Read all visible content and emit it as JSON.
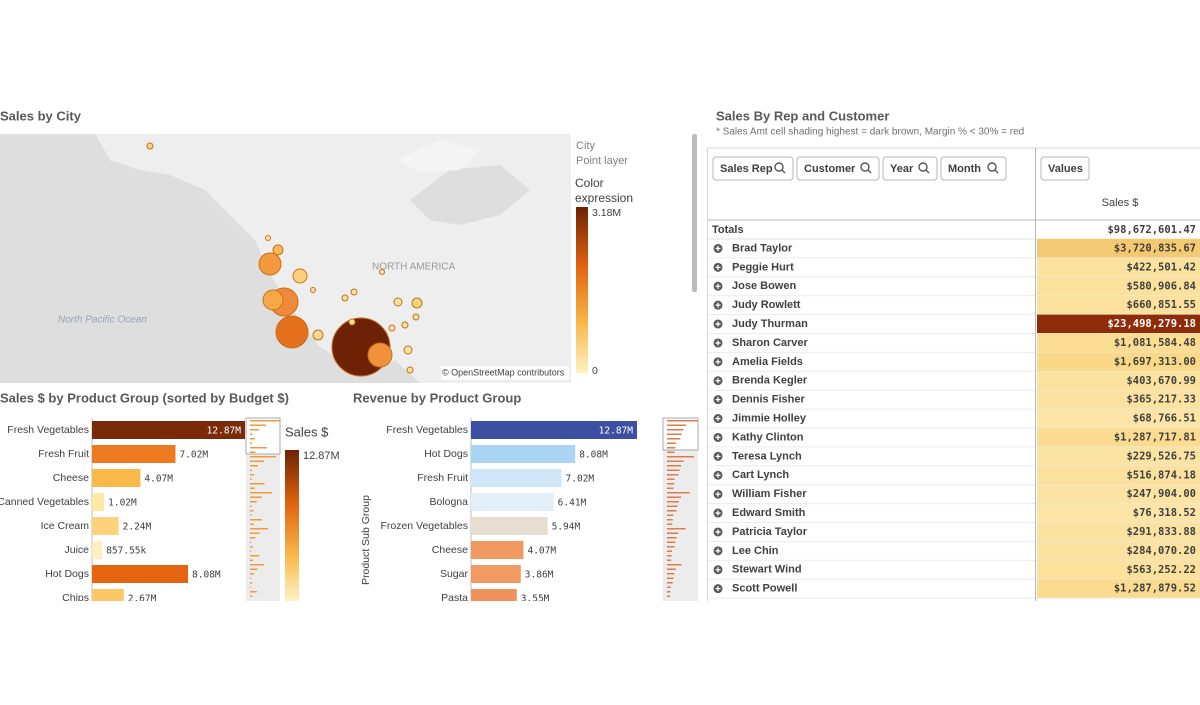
{
  "map": {
    "title": "Sales by City",
    "ocean_label": "North Pacific Ocean",
    "region_label": "NORTH AMERICA",
    "attribution": "© OpenStreetMap contributors",
    "legend": {
      "field": "City",
      "layer": "Point layer",
      "title": "Color expression",
      "max_label": "3.18M",
      "min_label": "0"
    }
  },
  "chart_data": [
    {
      "type": "bar",
      "orientation": "horizontal",
      "title": "Sales $ by Product Group (sorted by Budget $)",
      "categories": [
        "Fresh Vegetables",
        "Fresh Fruit",
        "Cheese",
        "Canned Vegetables",
        "Ice Cream",
        "Juice",
        "Hot Dogs",
        "Chips"
      ],
      "values": [
        12.87,
        7.02,
        4.07,
        1.02,
        2.24,
        0.85755,
        8.08,
        2.67
      ],
      "value_labels": [
        "12.87M",
        "7.02M",
        "4.07M",
        "1.02M",
        "2.24M",
        "857.55k",
        "8.08M",
        "2.67M"
      ],
      "colors": [
        "#7a2a06",
        "#ee7a20",
        "#f9b84a",
        "#fde8a6",
        "#fcd27a",
        "#feefbe",
        "#e4640f",
        "#fbc865"
      ],
      "legend": {
        "title": "Sales $",
        "max_label": "12.87M"
      }
    },
    {
      "type": "bar",
      "orientation": "horizontal",
      "title": "Revenue by Product Group",
      "y_axis_label": "Product Sub Group",
      "categories": [
        "Fresh Vegetables",
        "Hot Dogs",
        "Fresh Fruit",
        "Bologna",
        "Frozen Vegetables",
        "Cheese",
        "Sugar",
        "Pasta"
      ],
      "values": [
        12.87,
        8.08,
        7.02,
        6.41,
        5.94,
        4.07,
        3.86,
        3.55
      ],
      "value_labels": [
        "12.87M",
        "8.08M",
        "7.02M",
        "6.41M",
        "5.94M",
        "4.07M",
        "3.86M",
        "3.55M"
      ],
      "colors": [
        "#3d4fa3",
        "#a9d4f2",
        "#cfe6f8",
        "#e3eff9",
        "#e6ded0",
        "#f09a62",
        "#f19a63",
        "#f0925c"
      ]
    }
  ],
  "table": {
    "title": "Sales By Rep and Customer",
    "subtitle": "* Sales Amt cell shading highest = dark brown, Margin % < 30% = red",
    "filters": [
      "Sales Rep",
      "Customer",
      "Year",
      "Month"
    ],
    "values_button": "Values",
    "column_header": "Sales $",
    "totals_label": "Totals",
    "totals_value": "$98,672,601.47",
    "rows": [
      {
        "name": "Brad Taylor",
        "sales": "$3,720,835.67",
        "color": "#f5c972"
      },
      {
        "name": "Peggie Hurt",
        "sales": "$422,501.42",
        "color": "#fbe29f"
      },
      {
        "name": "Jose Bowen",
        "sales": "$580,906.84",
        "color": "#fbe19c"
      },
      {
        "name": "Judy Rowlett",
        "sales": "$660,851.55",
        "color": "#fbe19c"
      },
      {
        "name": "Judy Thurman",
        "sales": "$23,498,279.18",
        "color": "#8e2c0a"
      },
      {
        "name": "Sharon Carver",
        "sales": "$1,081,584.48",
        "color": "#fadd93"
      },
      {
        "name": "Amelia Fields",
        "sales": "$1,697,313.00",
        "color": "#f9d888"
      },
      {
        "name": "Brenda Kegler",
        "sales": "$403,670.99",
        "color": "#fbe29f"
      },
      {
        "name": "Dennis Fisher",
        "sales": "$365,217.33",
        "color": "#fbe2a0"
      },
      {
        "name": "Jimmie Holley",
        "sales": "$68,766.51",
        "color": "#fce5a6"
      },
      {
        "name": "Kathy Clinton",
        "sales": "$1,287,717.81",
        "color": "#fadb8f"
      },
      {
        "name": "Teresa Lynch",
        "sales": "$229,526.75",
        "color": "#fbe3a3"
      },
      {
        "name": "Cart Lynch",
        "sales": "$516,874.18",
        "color": "#fbe19d"
      },
      {
        "name": "William Fisher",
        "sales": "$247,904.00",
        "color": "#fbe3a3"
      },
      {
        "name": "Edward Smith",
        "sales": "$76,318.52",
        "color": "#fce5a6"
      },
      {
        "name": "Patricia Taylor",
        "sales": "$291,833.88",
        "color": "#fbe2a1"
      },
      {
        "name": "Lee Chin",
        "sales": "$284,070.20",
        "color": "#fbe2a1"
      },
      {
        "name": "Stewart Wind",
        "sales": "$563,252.22",
        "color": "#fbe19c"
      },
      {
        "name": "Scott Powell",
        "sales": "$1,287,879.52",
        "color": "#fadb8f"
      }
    ]
  }
}
